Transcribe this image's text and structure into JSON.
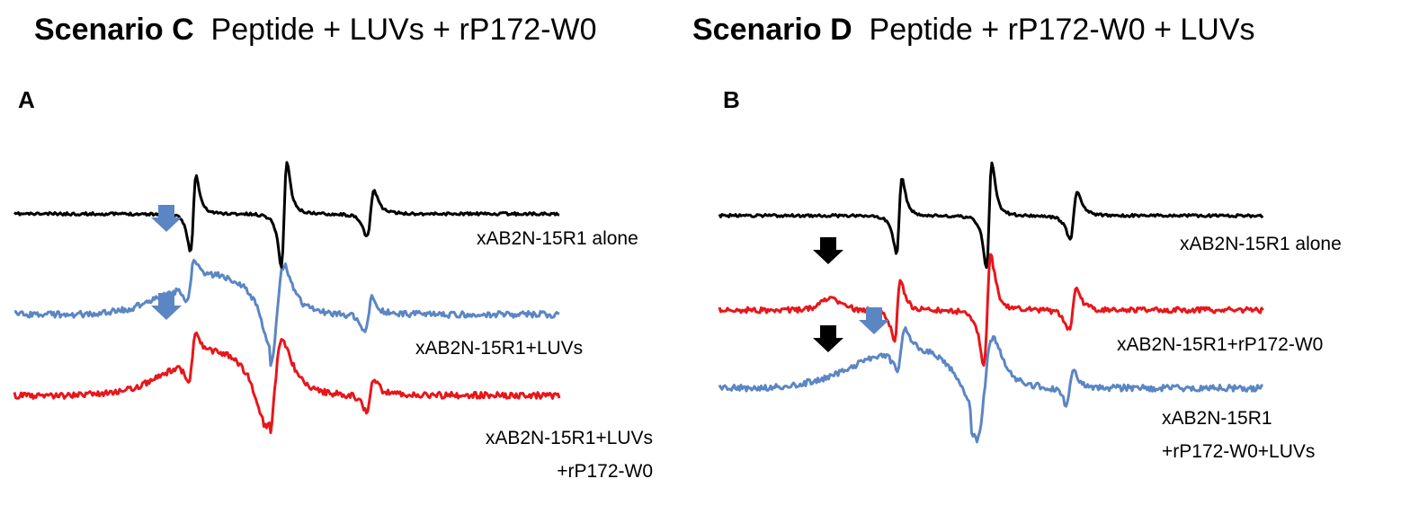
{
  "header": {
    "scenario_c": {
      "bold": "Scenario C",
      "text": "Peptide + LUVs + rP172-W0"
    },
    "scenario_d": {
      "bold": "Scenario D",
      "text": "Peptide + rP172-W0 + LUVs"
    }
  },
  "panels": {
    "a": {
      "letter": "A",
      "traces": [
        {
          "id": "a-black",
          "color": "#000000",
          "label_lines": [
            "xAB2N-15R1 alone"
          ]
        },
        {
          "id": "a-blue",
          "color": "#5b86c4",
          "label_lines": [
            "xAB2N-15R1+LUVs"
          ]
        },
        {
          "id": "a-red",
          "color": "#e8161b",
          "label_lines": [
            "xAB2N-15R1+LUVs",
            "+rP172-W0"
          ]
        }
      ],
      "arrows": [
        {
          "color": "#5b86c4",
          "icon": "down-arrow-icon"
        },
        {
          "color": "#5b86c4",
          "icon": "down-arrow-icon"
        }
      ]
    },
    "b": {
      "letter": "B",
      "traces": [
        {
          "id": "b-black",
          "color": "#000000",
          "label_lines": [
            "xAB2N-15R1 alone"
          ]
        },
        {
          "id": "b-red",
          "color": "#e8161b",
          "label_lines": [
            "xAB2N-15R1+rP172-W0"
          ]
        },
        {
          "id": "b-blue",
          "color": "#5b86c4",
          "label_lines": [
            "xAB2N-15R1",
            "+rP172-W0+LUVs"
          ]
        }
      ],
      "arrows": [
        {
          "color": "#000000",
          "icon": "down-arrow-icon"
        },
        {
          "color": "#000000",
          "icon": "down-arrow-icon"
        },
        {
          "color": "#5b86c4",
          "icon": "down-arrow-icon"
        }
      ]
    }
  },
  "chart_data": [
    {
      "type": "line",
      "title": "",
      "xlabel": "",
      "ylabel": "",
      "grid": false,
      "series": [
        {
          "name": "xAB2N-15R1 alone"
        },
        {
          "name": "xAB2N-15R1+LUVs"
        },
        {
          "name": "xAB2N-15R1+LUVs +rP172-W0"
        }
      ]
    },
    {
      "type": "line",
      "title": "",
      "xlabel": "",
      "ylabel": "",
      "grid": false,
      "series": [
        {
          "name": "xAB2N-15R1 alone"
        },
        {
          "name": "xAB2N-15R1+rP172-W0"
        },
        {
          "name": "xAB2N-15R1 +rP172-W0+LUVs"
        }
      ]
    }
  ]
}
